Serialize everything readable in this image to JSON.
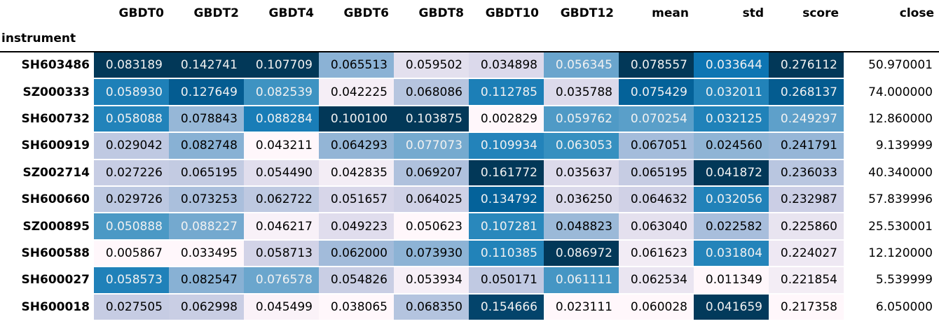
{
  "chart_data": {
    "type": "heatmap",
    "title": "",
    "index_label": "instrument",
    "columns": [
      "GBDT0",
      "GBDT2",
      "GBDT4",
      "GBDT6",
      "GBDT8",
      "GBDT10",
      "GBDT12",
      "mean",
      "std",
      "score",
      "close"
    ],
    "gradient_columns": [
      "GBDT0",
      "GBDT2",
      "GBDT4",
      "GBDT6",
      "GBDT8",
      "GBDT10",
      "GBDT12",
      "mean",
      "std",
      "score"
    ],
    "gradient_axis": "per-column",
    "colormap": "PuBu",
    "colormap_positions": [
      0,
      0.125,
      0.25,
      0.375,
      0.5,
      0.625,
      0.75,
      0.875,
      1
    ],
    "colormap_colors": [
      "#fff7fb",
      "#ece7f2",
      "#d0d1e6",
      "#a6bddb",
      "#74a9cf",
      "#3690c0",
      "#0570b0",
      "#045a8d",
      "#023858"
    ],
    "text_color_threshold": 0.408,
    "text_light": "#f1f1f1",
    "text_dark": "#000000",
    "header_rule_color": "#000000",
    "background": "#ffffff",
    "rows": [
      {
        "label": "SH603486",
        "values": [
          "0.083189",
          "0.142741",
          "0.107709",
          "0.065513",
          "0.059502",
          "0.034898",
          "0.056345",
          "0.078557",
          "0.033644",
          "0.276112",
          "50.970001"
        ]
      },
      {
        "label": "SZ000333",
        "values": [
          "0.058930",
          "0.127649",
          "0.082539",
          "0.042225",
          "0.068086",
          "0.112785",
          "0.035788",
          "0.075429",
          "0.032011",
          "0.268137",
          "74.000000"
        ]
      },
      {
        "label": "SH600732",
        "values": [
          "0.058088",
          "0.078843",
          "0.088284",
          "0.100100",
          "0.103875",
          "0.002829",
          "0.059762",
          "0.070254",
          "0.032125",
          "0.249297",
          "12.860000"
        ]
      },
      {
        "label": "SH600919",
        "values": [
          "0.029042",
          "0.082748",
          "0.043211",
          "0.064293",
          "0.077073",
          "0.109934",
          "0.063053",
          "0.067051",
          "0.024560",
          "0.241791",
          "9.139999"
        ]
      },
      {
        "label": "SZ002714",
        "values": [
          "0.027226",
          "0.065195",
          "0.054490",
          "0.042835",
          "0.069207",
          "0.161772",
          "0.035637",
          "0.065195",
          "0.041872",
          "0.236033",
          "40.340000"
        ]
      },
      {
        "label": "SH600660",
        "values": [
          "0.029726",
          "0.073253",
          "0.062722",
          "0.051657",
          "0.064025",
          "0.134792",
          "0.036250",
          "0.064632",
          "0.032056",
          "0.232987",
          "57.839996"
        ]
      },
      {
        "label": "SZ000895",
        "values": [
          "0.050888",
          "0.088227",
          "0.046217",
          "0.049223",
          "0.050623",
          "0.107281",
          "0.048823",
          "0.063040",
          "0.022582",
          "0.225860",
          "25.530001"
        ]
      },
      {
        "label": "SH600588",
        "values": [
          "0.005867",
          "0.033495",
          "0.058713",
          "0.062000",
          "0.073930",
          "0.110385",
          "0.086972",
          "0.061623",
          "0.031804",
          "0.224027",
          "12.120000"
        ]
      },
      {
        "label": "SH600027",
        "values": [
          "0.058573",
          "0.082547",
          "0.076578",
          "0.054826",
          "0.053934",
          "0.050171",
          "0.061111",
          "0.062534",
          "0.011349",
          "0.221854",
          "5.539999"
        ]
      },
      {
        "label": "SH600018",
        "values": [
          "0.027505",
          "0.062998",
          "0.045499",
          "0.038065",
          "0.068350",
          "0.154666",
          "0.023111",
          "0.060028",
          "0.041659",
          "0.217358",
          "6.050000"
        ]
      }
    ]
  }
}
